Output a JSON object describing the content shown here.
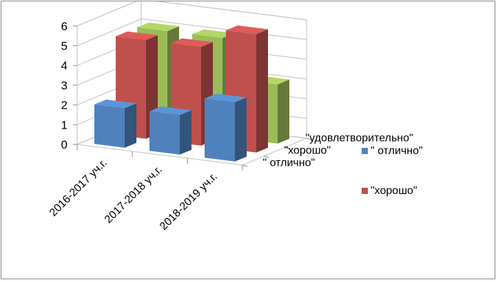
{
  "chart_data": {
    "type": "bar",
    "title": "",
    "categories": [
      "2016-2017 уч.г.",
      "2017-2018 уч.г.",
      "2018-2019 уч.г."
    ],
    "series": [
      {
        "name": "\" отлично\"",
        "values": [
          2,
          2,
          3
        ],
        "color": "#4f81bd"
      },
      {
        "name": "\"хорошо\"",
        "values": [
          5,
          5,
          6
        ],
        "color": "#c0504d"
      },
      {
        "name": "\"удовлетворительно\"",
        "values": [
          5,
          5,
          3
        ],
        "color": "#9bbb59"
      }
    ],
    "depth_labels": [
      "\" отлично\"",
      "\"хорошо\"",
      "\"удовлетворительно\""
    ],
    "ylim": [
      0,
      6
    ],
    "yticks": [
      "0",
      "1",
      "2",
      "3",
      "4",
      "5",
      "6"
    ],
    "legend": {
      "placement": "right",
      "entries": [
        {
          "label": "\" отлично\"",
          "color": "#4f81bd"
        },
        {
          "label": " \"хорошо\"",
          "color": "#c0504d"
        }
      ]
    },
    "grid": true
  }
}
